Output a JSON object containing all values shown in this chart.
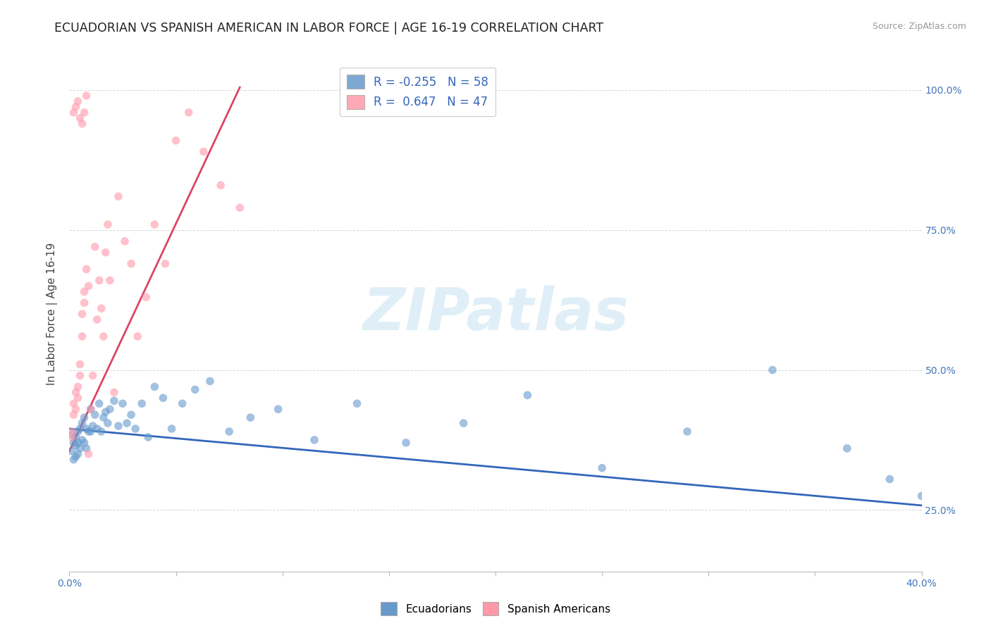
{
  "title": "ECUADORIAN VS SPANISH AMERICAN IN LABOR FORCE | AGE 16-19 CORRELATION CHART",
  "source_text": "Source: ZipAtlas.com",
  "ylabel": "In Labor Force | Age 16-19",
  "xlim": [
    0.0,
    0.4
  ],
  "ylim": [
    0.14,
    1.06
  ],
  "xtick_vals": [
    0.0,
    0.05,
    0.1,
    0.15,
    0.2,
    0.25,
    0.3,
    0.35,
    0.4
  ],
  "xticklabels": [
    "0.0%",
    "",
    "",
    "",
    "",
    "",
    "",
    "",
    "40.0%"
  ],
  "ytick_vals": [
    0.25,
    0.5,
    0.75,
    1.0
  ],
  "yticklabels": [
    "25.0%",
    "50.0%",
    "75.0%",
    "100.0%"
  ],
  "blue_color": "#6699CC",
  "pink_color": "#FF99AA",
  "line_blue": "#3366BB",
  "line_pink": "#DD4466",
  "title_fontsize": 12.5,
  "axis_label_fontsize": 11,
  "tick_fontsize": 10,
  "watermark": "ZIPatlas",
  "watermark_color": "#BBDDEE",
  "legend_blue_r": "R = -0.255",
  "legend_blue_n": "N = 58",
  "legend_pink_r": "R =  0.647",
  "legend_pink_n": "N = 47",
  "blue_scatter_x": [
    0.001,
    0.001,
    0.002,
    0.002,
    0.003,
    0.003,
    0.003,
    0.004,
    0.004,
    0.004,
    0.005,
    0.005,
    0.006,
    0.006,
    0.007,
    0.007,
    0.008,
    0.008,
    0.009,
    0.01,
    0.01,
    0.011,
    0.012,
    0.013,
    0.014,
    0.015,
    0.016,
    0.017,
    0.018,
    0.019,
    0.021,
    0.023,
    0.025,
    0.027,
    0.029,
    0.031,
    0.034,
    0.037,
    0.04,
    0.044,
    0.048,
    0.053,
    0.059,
    0.066,
    0.075,
    0.085,
    0.098,
    0.115,
    0.135,
    0.158,
    0.185,
    0.215,
    0.25,
    0.29,
    0.33,
    0.365,
    0.385,
    0.4
  ],
  "blue_scatter_y": [
    0.385,
    0.355,
    0.37,
    0.34,
    0.38,
    0.365,
    0.345,
    0.39,
    0.37,
    0.35,
    0.395,
    0.36,
    0.405,
    0.375,
    0.415,
    0.37,
    0.395,
    0.36,
    0.39,
    0.43,
    0.39,
    0.4,
    0.42,
    0.395,
    0.44,
    0.39,
    0.415,
    0.425,
    0.405,
    0.43,
    0.445,
    0.4,
    0.44,
    0.405,
    0.42,
    0.395,
    0.44,
    0.38,
    0.47,
    0.45,
    0.395,
    0.44,
    0.465,
    0.48,
    0.39,
    0.415,
    0.43,
    0.375,
    0.44,
    0.37,
    0.405,
    0.455,
    0.325,
    0.39,
    0.5,
    0.36,
    0.305,
    0.275
  ],
  "pink_scatter_x": [
    0.001,
    0.001,
    0.002,
    0.002,
    0.003,
    0.003,
    0.004,
    0.004,
    0.005,
    0.005,
    0.006,
    0.006,
    0.007,
    0.007,
    0.008,
    0.009,
    0.01,
    0.011,
    0.012,
    0.013,
    0.014,
    0.015,
    0.016,
    0.017,
    0.018,
    0.019,
    0.021,
    0.023,
    0.026,
    0.029,
    0.032,
    0.036,
    0.04,
    0.045,
    0.05,
    0.056,
    0.063,
    0.071,
    0.08,
    0.002,
    0.003,
    0.004,
    0.005,
    0.006,
    0.007,
    0.008,
    0.009
  ],
  "pink_scatter_y": [
    0.38,
    0.39,
    0.42,
    0.44,
    0.46,
    0.43,
    0.45,
    0.47,
    0.49,
    0.51,
    0.56,
    0.6,
    0.64,
    0.62,
    0.68,
    0.65,
    0.43,
    0.49,
    0.72,
    0.59,
    0.66,
    0.61,
    0.56,
    0.71,
    0.76,
    0.66,
    0.46,
    0.81,
    0.73,
    0.69,
    0.56,
    0.63,
    0.76,
    0.69,
    0.91,
    0.96,
    0.89,
    0.83,
    0.79,
    0.96,
    0.97,
    0.98,
    0.95,
    0.94,
    0.96,
    0.99,
    0.35
  ],
  "pink_line_x0": 0.0,
  "pink_line_y0": 0.355,
  "pink_line_x1": 0.08,
  "pink_line_y1": 1.005,
  "blue_line_x0": 0.0,
  "blue_line_y0": 0.395,
  "blue_line_x1": 0.4,
  "blue_line_y1": 0.258
}
